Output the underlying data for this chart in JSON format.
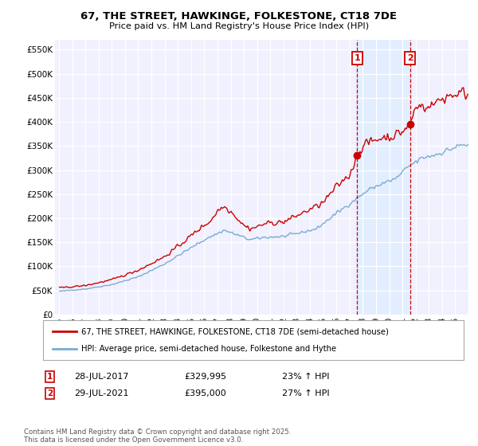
{
  "title": "67, THE STREET, HAWKINGE, FOLKESTONE, CT18 7DE",
  "subtitle": "Price paid vs. HM Land Registry's House Price Index (HPI)",
  "red_label": "67, THE STREET, HAWKINGE, FOLKESTONE, CT18 7DE (semi-detached house)",
  "blue_label": "HPI: Average price, semi-detached house, Folkestone and Hythe",
  "footnote": "Contains HM Land Registry data © Crown copyright and database right 2025.\nThis data is licensed under the Open Government Licence v3.0.",
  "annotation1_date": "28-JUL-2017",
  "annotation1_price": "£329,995",
  "annotation1_hpi": "23% ↑ HPI",
  "annotation2_date": "29-JUL-2021",
  "annotation2_price": "£395,000",
  "annotation2_hpi": "27% ↑ HPI",
  "ymin": 0,
  "ymax": 570000,
  "yticks": [
    0,
    50000,
    100000,
    150000,
    200000,
    250000,
    300000,
    350000,
    400000,
    450000,
    500000,
    550000
  ],
  "ytick_labels": [
    "£0",
    "£50K",
    "£100K",
    "£150K",
    "£200K",
    "£250K",
    "£300K",
    "£350K",
    "£400K",
    "£450K",
    "£500K",
    "£550K"
  ],
  "red_color": "#cc0000",
  "blue_color": "#7aadcf",
  "vline_color": "#cc0000",
  "shade_color": "#ddeeff",
  "bg_color": "#f0f0ff",
  "grid_color": "#ffffff",
  "ann1_t": 2017.583,
  "ann2_t": 2021.583,
  "ann1_val": 329995,
  "ann2_val": 395000,
  "xmin": 1994.7,
  "xmax": 2026.0
}
